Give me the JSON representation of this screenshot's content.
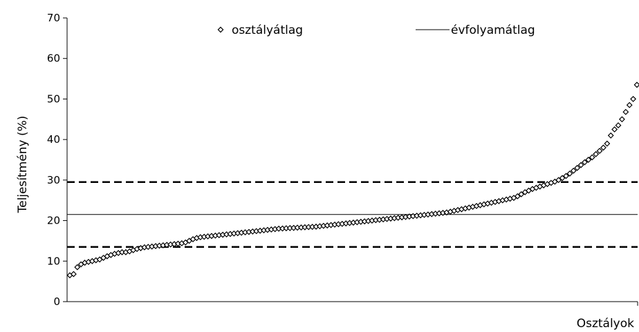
{
  "chart_data": {
    "type": "scatter",
    "title": "",
    "xlabel": "Osztályok",
    "ylabel": "Teljesítmény (%)",
    "ylim": [
      0,
      70
    ],
    "yticks": [
      "0",
      "10",
      "20",
      "30",
      "40",
      "50",
      "60",
      "70"
    ],
    "grid": false,
    "legend_position": "top",
    "series": [
      {
        "name": "osztályátlag",
        "marker": "diamond",
        "color": "#000000",
        "values": [
          6.5,
          6.8,
          8.5,
          9.2,
          9.6,
          9.8,
          10.0,
          10.2,
          10.4,
          10.8,
          11.2,
          11.5,
          11.8,
          12.0,
          12.2,
          12.2,
          12.4,
          12.7,
          13.0,
          13.2,
          13.4,
          13.5,
          13.6,
          13.7,
          13.8,
          13.9,
          14.0,
          14.1,
          14.2,
          14.3,
          14.4,
          14.6,
          15.0,
          15.4,
          15.7,
          15.9,
          16.0,
          16.1,
          16.2,
          16.3,
          16.4,
          16.5,
          16.6,
          16.7,
          16.8,
          16.9,
          17.0,
          17.1,
          17.2,
          17.3,
          17.4,
          17.5,
          17.6,
          17.7,
          17.8,
          17.9,
          18.0,
          18.05,
          18.1,
          18.15,
          18.2,
          18.25,
          18.3,
          18.35,
          18.4,
          18.45,
          18.5,
          18.6,
          18.7,
          18.8,
          18.9,
          19.0,
          19.1,
          19.2,
          19.3,
          19.4,
          19.5,
          19.6,
          19.7,
          19.8,
          19.9,
          20.0,
          20.1,
          20.2,
          20.3,
          20.4,
          20.5,
          20.6,
          20.7,
          20.8,
          20.9,
          21.0,
          21.1,
          21.2,
          21.3,
          21.4,
          21.5,
          21.6,
          21.7,
          21.8,
          21.9,
          22.0,
          22.2,
          22.4,
          22.6,
          22.8,
          23.0,
          23.2,
          23.4,
          23.6,
          23.8,
          24.0,
          24.2,
          24.4,
          24.6,
          24.8,
          25.0,
          25.2,
          25.4,
          25.6,
          26.0,
          26.5,
          27.0,
          27.4,
          27.8,
          28.1,
          28.4,
          28.7,
          29.0,
          29.3,
          29.6,
          30.0,
          30.5,
          31.0,
          31.6,
          32.3,
          33.0,
          33.7,
          34.4,
          35.0,
          35.6,
          36.4,
          37.2,
          38.0,
          39.0,
          41.0,
          42.5,
          43.5,
          45.0,
          46.8,
          48.5,
          50.0,
          53.5
        ]
      },
      {
        "name": "évfolyamátlag",
        "type": "line",
        "color": "#000000",
        "value": 21.5
      }
    ],
    "reference_lines": [
      {
        "value": 29.5,
        "style": "dashed"
      },
      {
        "value": 13.5,
        "style": "dashed"
      }
    ]
  }
}
